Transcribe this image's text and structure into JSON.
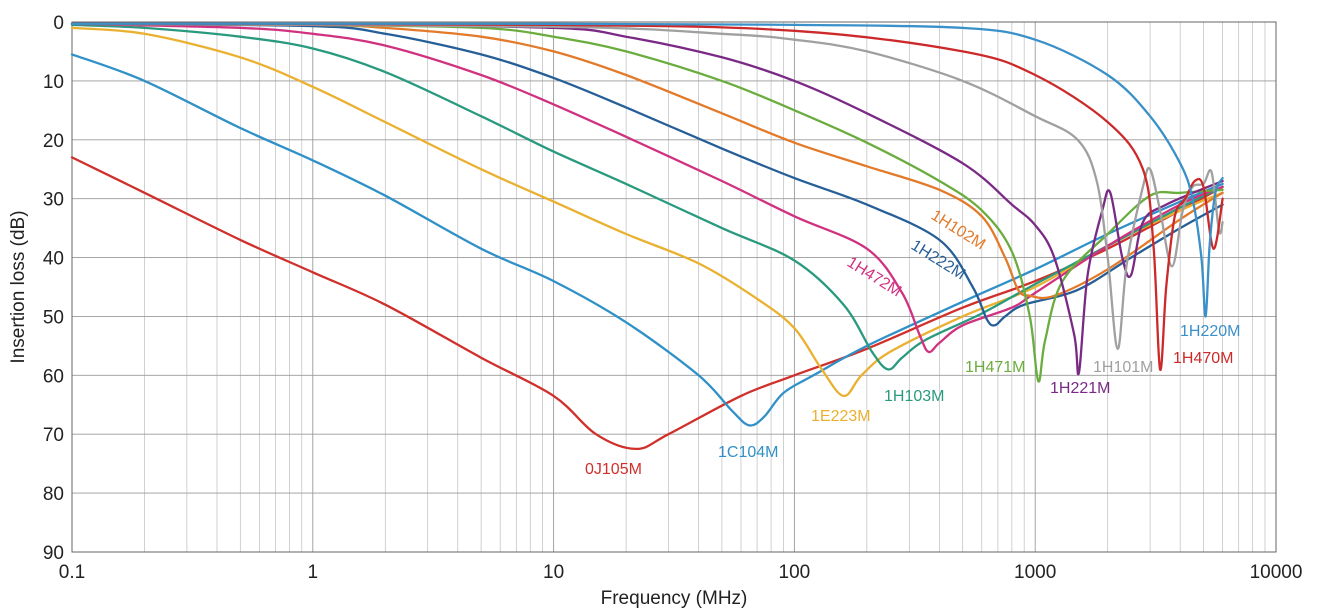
{
  "chart_data": {
    "type": "line",
    "xlabel": "Frequency (MHz)",
    "ylabel": "Insertion loss (dB)",
    "x_scale": "log",
    "xlim": [
      0.1,
      10000
    ],
    "ylim": [
      0,
      90
    ],
    "y_inverted": true,
    "grid": true,
    "x_tick_labels": [
      "0.1",
      "1",
      "10",
      "100",
      "1000",
      "10000"
    ],
    "y_tick_labels": [
      "0",
      "10",
      "20",
      "30",
      "40",
      "50",
      "60",
      "70",
      "80",
      "90"
    ],
    "series": [
      {
        "name": "0J105M",
        "color": "#d0302b",
        "points": [
          [
            0.1,
            23
          ],
          [
            0.2,
            29
          ],
          [
            0.5,
            37
          ],
          [
            1,
            42.5
          ],
          [
            2,
            48
          ],
          [
            5,
            57
          ],
          [
            10,
            63.5
          ],
          [
            15,
            70
          ],
          [
            22,
            72.5
          ],
          [
            30,
            70
          ],
          [
            60,
            63.5
          ],
          [
            100,
            60
          ],
          [
            200,
            55.5
          ],
          [
            500,
            48.5
          ],
          [
            1000,
            44
          ],
          [
            2000,
            38.5
          ],
          [
            4000,
            32
          ],
          [
            6000,
            28
          ]
        ]
      },
      {
        "name": "1C104M",
        "color": "#3090c8",
        "points": [
          [
            0.1,
            5.5
          ],
          [
            0.2,
            10
          ],
          [
            0.5,
            18
          ],
          [
            1,
            23.5
          ],
          [
            2,
            29.5
          ],
          [
            5,
            38.5
          ],
          [
            10,
            44
          ],
          [
            20,
            51
          ],
          [
            40,
            60
          ],
          [
            55,
            66
          ],
          [
            65,
            68.5
          ],
          [
            75,
            67
          ],
          [
            90,
            63
          ],
          [
            120,
            60
          ],
          [
            200,
            55
          ],
          [
            500,
            47.5
          ],
          [
            1000,
            42
          ],
          [
            2000,
            36
          ],
          [
            4000,
            30.5
          ],
          [
            6000,
            27.5
          ]
        ]
      },
      {
        "name": "1E223M",
        "color": "#eab030",
        "points": [
          [
            0.1,
            1
          ],
          [
            0.2,
            2
          ],
          [
            0.5,
            6
          ],
          [
            1,
            11
          ],
          [
            2,
            17
          ],
          [
            5,
            25
          ],
          [
            10,
            30.5
          ],
          [
            20,
            36
          ],
          [
            40,
            41
          ],
          [
            70,
            47
          ],
          [
            100,
            52
          ],
          [
            130,
            59
          ],
          [
            160,
            63.5
          ],
          [
            190,
            60
          ],
          [
            250,
            56
          ],
          [
            500,
            50
          ],
          [
            1000,
            45
          ],
          [
            2000,
            38
          ],
          [
            4000,
            32
          ],
          [
            6000,
            29
          ]
        ]
      },
      {
        "name": "1H103M",
        "color": "#2a9a7e",
        "points": [
          [
            0.1,
            0.5
          ],
          [
            0.2,
            1
          ],
          [
            0.5,
            2.5
          ],
          [
            1,
            4.5
          ],
          [
            2,
            8.5
          ],
          [
            5,
            16
          ],
          [
            10,
            22
          ],
          [
            20,
            27.5
          ],
          [
            50,
            35
          ],
          [
            100,
            40.5
          ],
          [
            160,
            48
          ],
          [
            210,
            56
          ],
          [
            245,
            59
          ],
          [
            280,
            57
          ],
          [
            350,
            54
          ],
          [
            600,
            49.5
          ],
          [
            1000,
            44.5
          ],
          [
            2000,
            38
          ],
          [
            4000,
            31.5
          ],
          [
            6000,
            28
          ]
        ]
      },
      {
        "name": "1H472M",
        "color": "#d03280",
        "points": [
          [
            0.1,
            0.3
          ],
          [
            0.5,
            1
          ],
          [
            1,
            2
          ],
          [
            2,
            4
          ],
          [
            5,
            9
          ],
          [
            10,
            14
          ],
          [
            20,
            19.5
          ],
          [
            50,
            27
          ],
          [
            100,
            33
          ],
          [
            200,
            38.5
          ],
          [
            280,
            46
          ],
          [
            330,
            53
          ],
          [
            360,
            56
          ],
          [
            400,
            54.5
          ],
          [
            500,
            51.5
          ],
          [
            800,
            48.5
          ],
          [
            1000,
            46
          ],
          [
            2000,
            38
          ],
          [
            4000,
            31
          ],
          [
            6000,
            28
          ]
        ]
      },
      {
        "name": "1H222M",
        "color": "#265f97",
        "points": [
          [
            0.1,
            0.3
          ],
          [
            1,
            0.7
          ],
          [
            2,
            2
          ],
          [
            5,
            5.5
          ],
          [
            10,
            9.5
          ],
          [
            20,
            14.5
          ],
          [
            50,
            21.5
          ],
          [
            100,
            26.5
          ],
          [
            200,
            31
          ],
          [
            400,
            37
          ],
          [
            550,
            45
          ],
          [
            630,
            50.5
          ],
          [
            680,
            51.5
          ],
          [
            750,
            50
          ],
          [
            900,
            48
          ],
          [
            1500,
            45.5
          ],
          [
            2500,
            40
          ],
          [
            4000,
            35
          ],
          [
            6000,
            31
          ]
        ]
      },
      {
        "name": "1H102M",
        "color": "#e37a2a",
        "points": [
          [
            0.1,
            0.3
          ],
          [
            1,
            0.5
          ],
          [
            2,
            1
          ],
          [
            5,
            2.5
          ],
          [
            10,
            5
          ],
          [
            20,
            9
          ],
          [
            50,
            15.5
          ],
          [
            100,
            20.5
          ],
          [
            200,
            24.5
          ],
          [
            400,
            28.5
          ],
          [
            600,
            33
          ],
          [
            750,
            40
          ],
          [
            850,
            45.5
          ],
          [
            950,
            46.5
          ],
          [
            1200,
            46.5
          ],
          [
            2000,
            42
          ],
          [
            4000,
            33.5
          ],
          [
            6000,
            29
          ]
        ]
      },
      {
        "name": "1H471M",
        "color": "#6aad3e",
        "points": [
          [
            0.1,
            0.3
          ],
          [
            1,
            0.5
          ],
          [
            5,
            1
          ],
          [
            10,
            2.5
          ],
          [
            20,
            5
          ],
          [
            50,
            10
          ],
          [
            100,
            15
          ],
          [
            200,
            20.5
          ],
          [
            400,
            27
          ],
          [
            600,
            32
          ],
          [
            800,
            39
          ],
          [
            950,
            50
          ],
          [
            1030,
            61
          ],
          [
            1100,
            54
          ],
          [
            1300,
            44
          ],
          [
            2000,
            36
          ],
          [
            3000,
            29.5
          ],
          [
            4000,
            29
          ],
          [
            6000,
            28.5
          ]
        ]
      },
      {
        "name": "1H221M",
        "color": "#7a2a85",
        "points": [
          [
            0.1,
            0.3
          ],
          [
            1,
            0.4
          ],
          [
            10,
            1
          ],
          [
            20,
            2.5
          ],
          [
            50,
            6
          ],
          [
            100,
            10
          ],
          [
            200,
            15.5
          ],
          [
            500,
            24
          ],
          [
            800,
            31
          ],
          [
            1000,
            34.5
          ],
          [
            1200,
            40
          ],
          [
            1450,
            53
          ],
          [
            1520,
            59.5
          ],
          [
            1650,
            43
          ],
          [
            1900,
            32
          ],
          [
            2050,
            29
          ],
          [
            2300,
            40
          ],
          [
            2500,
            43
          ],
          [
            2800,
            34
          ],
          [
            3500,
            31
          ],
          [
            6000,
            27
          ]
        ]
      },
      {
        "name": "1H101M",
        "color": "#a0a0a0",
        "points": [
          [
            0.1,
            0.3
          ],
          [
            10,
            0.8
          ],
          [
            50,
            2
          ],
          [
            100,
            3
          ],
          [
            200,
            5
          ],
          [
            500,
            10
          ],
          [
            1000,
            16
          ],
          [
            1500,
            20
          ],
          [
            1800,
            27
          ],
          [
            2000,
            40
          ],
          [
            2200,
            55.5
          ],
          [
            2400,
            41
          ],
          [
            2800,
            28
          ],
          [
            3000,
            25
          ],
          [
            3300,
            32
          ],
          [
            3700,
            41.5
          ],
          [
            4100,
            32
          ],
          [
            4500,
            28
          ],
          [
            5000,
            27.5
          ],
          [
            5400,
            25.5
          ],
          [
            5800,
            35.5
          ],
          [
            6000,
            34
          ]
        ]
      },
      {
        "name": "1H470M",
        "color": "#cc2a2a",
        "points": [
          [
            0.1,
            0.3
          ],
          [
            10,
            0.5
          ],
          [
            100,
            1.5
          ],
          [
            500,
            5
          ],
          [
            1000,
            9
          ],
          [
            2000,
            17
          ],
          [
            2800,
            25
          ],
          [
            3100,
            38
          ],
          [
            3300,
            59
          ],
          [
            3500,
            45
          ],
          [
            3800,
            33
          ],
          [
            4200,
            30
          ],
          [
            4600,
            27
          ],
          [
            5000,
            28
          ],
          [
            5500,
            38.5
          ],
          [
            6000,
            30
          ]
        ]
      },
      {
        "name": "1H220M",
        "color": "#3a90c8",
        "points": [
          [
            0.1,
            0.3
          ],
          [
            10,
            0.3
          ],
          [
            100,
            0.5
          ],
          [
            500,
            1
          ],
          [
            1000,
            3
          ],
          [
            2000,
            9
          ],
          [
            3000,
            16
          ],
          [
            4000,
            24
          ],
          [
            4500,
            30
          ],
          [
            4900,
            40
          ],
          [
            5100,
            50
          ],
          [
            5300,
            38
          ],
          [
            5600,
            29
          ],
          [
            6000,
            26.5
          ]
        ]
      }
    ]
  }
}
